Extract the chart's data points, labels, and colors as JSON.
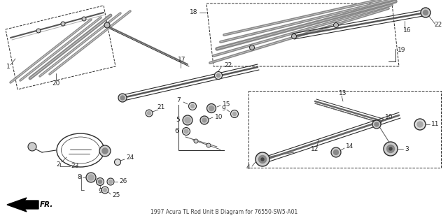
{
  "bg_color": "#ffffff",
  "line_color": "#2a2a2a",
  "title": "1997 Acura TL Rod Unit B Diagram for 76550-SW5-A01",
  "fig_w": 6.4,
  "fig_h": 3.12,
  "dpi": 100
}
